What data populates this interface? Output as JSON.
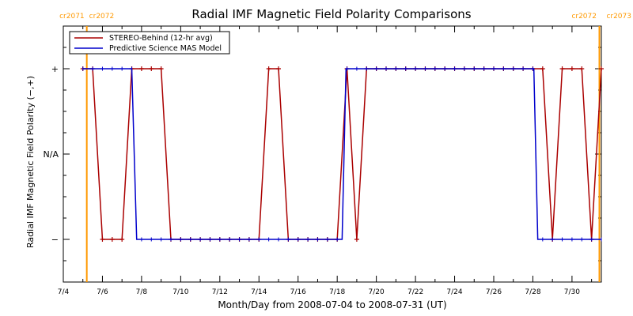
{
  "chart_data": {
    "type": "line",
    "title": "Radial IMF Magnetic Field Polarity Comparisons",
    "xlabel": "Month/Day from 2008-07-04 to 2008-07-31 (UT)",
    "ylabel": "Radial IMF Magnetic Field Polarity (−,+)",
    "xlim": [
      0,
      27.5
    ],
    "ylim": [
      -1.5,
      1.5
    ],
    "x_tick_labels": [
      "7/4",
      "7/6",
      "7/8",
      "7/10",
      "7/12",
      "7/14",
      "7/16",
      "7/18",
      "7/20",
      "7/22",
      "7/24",
      "7/26",
      "7/28",
      "7/30"
    ],
    "y_tick_labels": [
      {
        "value": 1,
        "label": "+"
      },
      {
        "value": 0,
        "label": "N/A"
      },
      {
        "value": -1,
        "label": "−"
      }
    ],
    "rotation_markers": [
      {
        "x": 1.2,
        "left_label": "cr2071",
        "right_label": "cr2072",
        "color": "#ff9900"
      },
      {
        "x": 27.4,
        "left_label": "cr2072",
        "right_label": "cr2073",
        "color": "#ff9900"
      }
    ],
    "legend": {
      "placement": "top-left"
    },
    "series": [
      {
        "name": "STEREO-Behind (12-hr avg)",
        "color": "#aa0000",
        "points": [
          [
            1.0,
            1
          ],
          [
            1.5,
            1
          ],
          [
            2.0,
            -1
          ],
          [
            2.5,
            -1
          ],
          [
            3.0,
            -1
          ],
          [
            3.5,
            1
          ],
          [
            4.0,
            1
          ],
          [
            4.5,
            1
          ],
          [
            5.0,
            1
          ],
          [
            5.5,
            -1
          ],
          [
            6.0,
            -1
          ],
          [
            6.5,
            -1
          ],
          [
            7.0,
            -1
          ],
          [
            7.5,
            -1
          ],
          [
            8.0,
            -1
          ],
          [
            8.5,
            -1
          ],
          [
            9.0,
            -1
          ],
          [
            9.5,
            -1
          ],
          [
            10.0,
            -1
          ],
          [
            10.5,
            1
          ],
          [
            11.0,
            1
          ],
          [
            11.5,
            -1
          ],
          [
            12.0,
            -1
          ],
          [
            12.5,
            -1
          ],
          [
            13.0,
            -1
          ],
          [
            13.5,
            -1
          ],
          [
            14.0,
            -1
          ],
          [
            14.5,
            1
          ],
          [
            15.0,
            -1
          ],
          [
            15.5,
            1
          ],
          [
            16.0,
            1
          ],
          [
            16.5,
            1
          ],
          [
            17.0,
            1
          ],
          [
            17.5,
            1
          ],
          [
            18.0,
            1
          ],
          [
            18.5,
            1
          ],
          [
            19.0,
            1
          ],
          [
            19.5,
            1
          ],
          [
            20.0,
            1
          ],
          [
            20.5,
            1
          ],
          [
            21.0,
            1
          ],
          [
            21.5,
            1
          ],
          [
            22.0,
            1
          ],
          [
            22.5,
            1
          ],
          [
            23.0,
            1
          ],
          [
            23.5,
            1
          ],
          [
            24.0,
            1
          ],
          [
            24.5,
            1
          ],
          [
            25.0,
            -1
          ],
          [
            25.5,
            1
          ],
          [
            26.0,
            1
          ],
          [
            26.5,
            1
          ],
          [
            27.0,
            -1
          ],
          [
            27.5,
            1
          ]
        ]
      },
      {
        "name": "Predictive Science MAS Model",
        "color": "#0000cc",
        "points": [
          [
            1.0,
            1
          ],
          [
            3.5,
            1
          ],
          [
            3.75,
            -1
          ],
          [
            14.25,
            -1
          ],
          [
            14.45,
            1
          ],
          [
            24.05,
            1
          ],
          [
            24.25,
            -1
          ],
          [
            27.5,
            -1
          ]
        ]
      }
    ]
  }
}
